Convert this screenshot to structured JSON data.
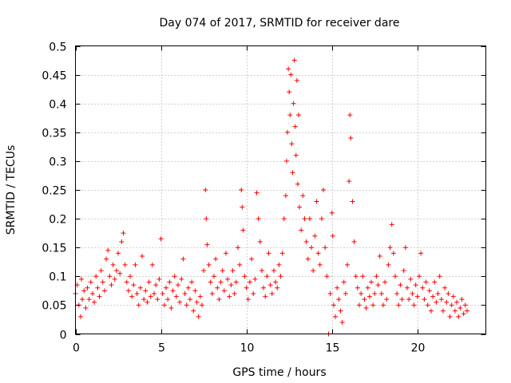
{
  "chart_data": {
    "type": "scatter",
    "title": "Day 074 of 2017, SRMTID for receiver dare",
    "xlabel": "GPS time / hours",
    "ylabel": "SRMTID / TECUs",
    "xlim": [
      0,
      24
    ],
    "ylim": [
      0,
      0.5
    ],
    "xticks": [
      0,
      5,
      10,
      15,
      20
    ],
    "xtick_labels": [
      "0",
      "5",
      "10",
      "15",
      "20"
    ],
    "yticks": [
      0,
      0.05,
      0.1,
      0.15,
      0.2,
      0.25,
      0.3,
      0.35,
      0.4,
      0.45,
      0.5
    ],
    "ytick_labels": [
      "0",
      "0.05",
      "0.1",
      "0.15",
      "0.2",
      "0.25",
      "0.3",
      "0.35",
      "0.4",
      "0.45",
      "0.5"
    ],
    "grid": true,
    "marker": "+",
    "color": "#ff0000",
    "series": [
      {
        "name": "SRMTID",
        "points": [
          [
            0.0,
            0.07
          ],
          [
            0.1,
            0.085
          ],
          [
            0.2,
            0.05
          ],
          [
            0.3,
            0.03
          ],
          [
            0.35,
            0.095
          ],
          [
            0.4,
            0.06
          ],
          [
            0.5,
            0.075
          ],
          [
            0.6,
            0.045
          ],
          [
            0.7,
            0.08
          ],
          [
            0.8,
            0.06
          ],
          [
            0.9,
            0.09
          ],
          [
            1.0,
            0.07
          ],
          [
            1.1,
            0.055
          ],
          [
            1.2,
            0.1
          ],
          [
            1.3,
            0.08
          ],
          [
            1.4,
            0.065
          ],
          [
            1.5,
            0.11
          ],
          [
            1.6,
            0.09
          ],
          [
            1.7,
            0.075
          ],
          [
            1.8,
            0.13
          ],
          [
            1.9,
            0.145
          ],
          [
            2.0,
            0.1
          ],
          [
            2.1,
            0.085
          ],
          [
            2.2,
            0.12
          ],
          [
            2.3,
            0.095
          ],
          [
            2.4,
            0.11
          ],
          [
            2.5,
            0.14
          ],
          [
            2.6,
            0.105
          ],
          [
            2.7,
            0.16
          ],
          [
            2.8,
            0.175
          ],
          [
            2.9,
            0.12
          ],
          [
            3.0,
            0.09
          ],
          [
            3.1,
            0.075
          ],
          [
            3.2,
            0.1
          ],
          [
            3.3,
            0.065
          ],
          [
            3.4,
            0.085
          ],
          [
            3.5,
            0.12
          ],
          [
            3.6,
            0.07
          ],
          [
            3.7,
            0.05
          ],
          [
            3.8,
            0.08
          ],
          [
            3.9,
            0.135
          ],
          [
            4.0,
            0.06
          ],
          [
            4.1,
            0.075
          ],
          [
            4.2,
            0.055
          ],
          [
            4.3,
            0.09
          ],
          [
            4.4,
            0.065
          ],
          [
            4.5,
            0.12
          ],
          [
            4.6,
            0.07
          ],
          [
            4.7,
            0.085
          ],
          [
            4.8,
            0.06
          ],
          [
            4.9,
            0.095
          ],
          [
            5.0,
            0.165
          ],
          [
            5.1,
            0.07
          ],
          [
            5.2,
            0.05
          ],
          [
            5.3,
            0.08
          ],
          [
            5.4,
            0.06
          ],
          [
            5.5,
            0.09
          ],
          [
            5.6,
            0.045
          ],
          [
            5.7,
            0.075
          ],
          [
            5.8,
            0.1
          ],
          [
            5.9,
            0.065
          ],
          [
            6.0,
            0.085
          ],
          [
            6.1,
            0.055
          ],
          [
            6.2,
            0.095
          ],
          [
            6.3,
            0.13
          ],
          [
            6.4,
            0.07
          ],
          [
            6.5,
            0.05
          ],
          [
            6.6,
            0.08
          ],
          [
            6.7,
            0.06
          ],
          [
            6.8,
            0.09
          ],
          [
            6.9,
            0.04
          ],
          [
            7.0,
            0.075
          ],
          [
            7.1,
            0.055
          ],
          [
            7.2,
            0.03
          ],
          [
            7.3,
            0.065
          ],
          [
            7.4,
            0.05
          ],
          [
            7.5,
            0.11
          ],
          [
            7.6,
            0.25
          ],
          [
            7.65,
            0.2
          ],
          [
            7.7,
            0.155
          ],
          [
            7.8,
            0.12
          ],
          [
            7.9,
            0.09
          ],
          [
            8.0,
            0.07
          ],
          [
            8.1,
            0.1
          ],
          [
            8.2,
            0.13
          ],
          [
            8.3,
            0.08
          ],
          [
            8.4,
            0.06
          ],
          [
            8.5,
            0.09
          ],
          [
            8.6,
            0.11
          ],
          [
            8.7,
            0.075
          ],
          [
            8.8,
            0.14
          ],
          [
            8.9,
            0.095
          ],
          [
            9.0,
            0.065
          ],
          [
            9.1,
            0.085
          ],
          [
            9.2,
            0.11
          ],
          [
            9.3,
            0.07
          ],
          [
            9.4,
            0.09
          ],
          [
            9.5,
            0.15
          ],
          [
            9.6,
            0.12
          ],
          [
            9.7,
            0.25
          ],
          [
            9.75,
            0.22
          ],
          [
            9.8,
            0.18
          ],
          [
            9.9,
            0.1
          ],
          [
            10.0,
            0.08
          ],
          [
            10.1,
            0.06
          ],
          [
            10.2,
            0.09
          ],
          [
            10.3,
            0.13
          ],
          [
            10.4,
            0.07
          ],
          [
            10.5,
            0.095
          ],
          [
            10.6,
            0.245
          ],
          [
            10.7,
            0.2
          ],
          [
            10.8,
            0.16
          ],
          [
            10.9,
            0.11
          ],
          [
            11.0,
            0.08
          ],
          [
            11.1,
            0.065
          ],
          [
            11.2,
            0.1
          ],
          [
            11.3,
            0.14
          ],
          [
            11.4,
            0.085
          ],
          [
            11.5,
            0.07
          ],
          [
            11.6,
            0.11
          ],
          [
            11.7,
            0.09
          ],
          [
            11.8,
            0.08
          ],
          [
            11.9,
            0.12
          ],
          [
            12.0,
            0.1
          ],
          [
            12.1,
            0.14
          ],
          [
            12.2,
            0.2
          ],
          [
            12.3,
            0.24
          ],
          [
            12.35,
            0.3
          ],
          [
            12.4,
            0.35
          ],
          [
            12.45,
            0.46
          ],
          [
            12.5,
            0.42
          ],
          [
            12.55,
            0.38
          ],
          [
            12.6,
            0.45
          ],
          [
            12.65,
            0.33
          ],
          [
            12.7,
            0.28
          ],
          [
            12.75,
            0.4
          ],
          [
            12.8,
            0.475
          ],
          [
            12.85,
            0.36
          ],
          [
            12.9,
            0.31
          ],
          [
            12.95,
            0.44
          ],
          [
            13.0,
            0.26
          ],
          [
            13.05,
            0.38
          ],
          [
            13.1,
            0.22
          ],
          [
            13.2,
            0.18
          ],
          [
            13.3,
            0.24
          ],
          [
            13.4,
            0.2
          ],
          [
            13.5,
            0.16
          ],
          [
            13.6,
            0.13
          ],
          [
            13.7,
            0.2
          ],
          [
            13.8,
            0.15
          ],
          [
            13.9,
            0.11
          ],
          [
            14.0,
            0.17
          ],
          [
            14.1,
            0.23
          ],
          [
            14.2,
            0.14
          ],
          [
            14.3,
            0.12
          ],
          [
            14.4,
            0.2
          ],
          [
            14.5,
            0.25
          ],
          [
            14.6,
            0.15
          ],
          [
            14.7,
            0.1
          ],
          [
            14.8,
            0.0
          ],
          [
            14.9,
            0.07
          ],
          [
            15.0,
            0.21
          ],
          [
            15.05,
            0.17
          ],
          [
            15.1,
            0.05
          ],
          [
            15.2,
            0.03
          ],
          [
            15.3,
            0.08
          ],
          [
            15.4,
            0.06
          ],
          [
            15.5,
            0.04
          ],
          [
            15.6,
            0.02
          ],
          [
            15.7,
            0.09
          ],
          [
            15.8,
            0.07
          ],
          [
            15.9,
            0.12
          ],
          [
            16.0,
            0.265
          ],
          [
            16.05,
            0.38
          ],
          [
            16.1,
            0.34
          ],
          [
            16.2,
            0.23
          ],
          [
            16.3,
            0.16
          ],
          [
            16.4,
            0.1
          ],
          [
            16.5,
            0.08
          ],
          [
            16.6,
            0.05
          ],
          [
            16.7,
            0.07
          ],
          [
            16.8,
            0.1
          ],
          [
            16.9,
            0.06
          ],
          [
            17.0,
            0.045
          ],
          [
            17.1,
            0.08
          ],
          [
            17.2,
            0.065
          ],
          [
            17.3,
            0.09
          ],
          [
            17.4,
            0.05
          ],
          [
            17.5,
            0.07
          ],
          [
            17.6,
            0.1
          ],
          [
            17.7,
            0.085
          ],
          [
            17.8,
            0.135
          ],
          [
            17.9,
            0.07
          ],
          [
            18.0,
            0.05
          ],
          [
            18.1,
            0.09
          ],
          [
            18.2,
            0.06
          ],
          [
            18.3,
            0.12
          ],
          [
            18.4,
            0.15
          ],
          [
            18.5,
            0.19
          ],
          [
            18.6,
            0.14
          ],
          [
            18.7,
            0.1
          ],
          [
            18.8,
            0.07
          ],
          [
            18.9,
            0.05
          ],
          [
            19.0,
            0.085
          ],
          [
            19.1,
            0.06
          ],
          [
            19.2,
            0.11
          ],
          [
            19.3,
            0.15
          ],
          [
            19.4,
            0.08
          ],
          [
            19.5,
            0.06
          ],
          [
            19.6,
            0.095
          ],
          [
            19.7,
            0.07
          ],
          [
            19.8,
            0.05
          ],
          [
            19.9,
            0.085
          ],
          [
            20.0,
            0.065
          ],
          [
            20.1,
            0.1
          ],
          [
            20.2,
            0.14
          ],
          [
            20.3,
            0.08
          ],
          [
            20.4,
            0.06
          ],
          [
            20.5,
            0.09
          ],
          [
            20.6,
            0.05
          ],
          [
            20.7,
            0.075
          ],
          [
            20.8,
            0.04
          ],
          [
            20.9,
            0.065
          ],
          [
            21.0,
            0.09
          ],
          [
            21.1,
            0.055
          ],
          [
            21.2,
            0.07
          ],
          [
            21.3,
            0.1
          ],
          [
            21.4,
            0.06
          ],
          [
            21.5,
            0.04
          ],
          [
            21.6,
            0.08
          ],
          [
            21.7,
            0.055
          ],
          [
            21.8,
            0.07
          ],
          [
            21.9,
            0.03
          ],
          [
            22.0,
            0.05
          ],
          [
            22.1,
            0.065
          ],
          [
            22.2,
            0.04
          ],
          [
            22.3,
            0.055
          ],
          [
            22.4,
            0.03
          ],
          [
            22.5,
            0.045
          ],
          [
            22.6,
            0.06
          ],
          [
            22.7,
            0.035
          ],
          [
            22.8,
            0.05
          ],
          [
            22.9,
            0.04
          ]
        ]
      }
    ]
  }
}
